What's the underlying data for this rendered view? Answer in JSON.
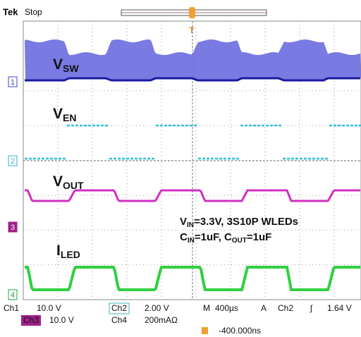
{
  "header": {
    "brand": "Tek",
    "state": "Stop"
  },
  "traces": [
    {
      "label": [
        {
          "text": "V"
        },
        {
          "sub": "SW"
        }
      ],
      "marker": "1"
    },
    {
      "label": [
        {
          "text": "V"
        },
        {
          "sub": "EN"
        }
      ],
      "marker": "2"
    },
    {
      "label": [
        {
          "text": "V"
        },
        {
          "sub": "OUT"
        }
      ],
      "marker": "3"
    },
    {
      "label": [
        {
          "text": "I"
        },
        {
          "sub": "LED"
        }
      ],
      "marker": "4"
    }
  ],
  "annotation": [
    [
      {
        "text": "V"
      },
      {
        "sub": "IN"
      },
      {
        "text": "=3.3V, 3S10P WLEDs"
      }
    ],
    [
      {
        "text": "C"
      },
      {
        "sub": "IN"
      },
      {
        "text": "=1uF, C"
      },
      {
        "sub": "OUT"
      },
      {
        "text": "=1uF"
      }
    ]
  ],
  "status": {
    "ch1": {
      "name": "Ch1",
      "scale": "10.0 V"
    },
    "ch2": {
      "name": "Ch2",
      "scale": "2.00 V"
    },
    "ch3": {
      "name": "Ch3",
      "scale": "10.0 V"
    },
    "ch4": {
      "name": "Ch4",
      "scale": "200mAΩ"
    },
    "time": {
      "label": "M",
      "scale": "400µs"
    },
    "trigger": {
      "label": "A",
      "source": "Ch2",
      "level": "1.64 V",
      "position": "-400.000ns"
    }
  }
}
